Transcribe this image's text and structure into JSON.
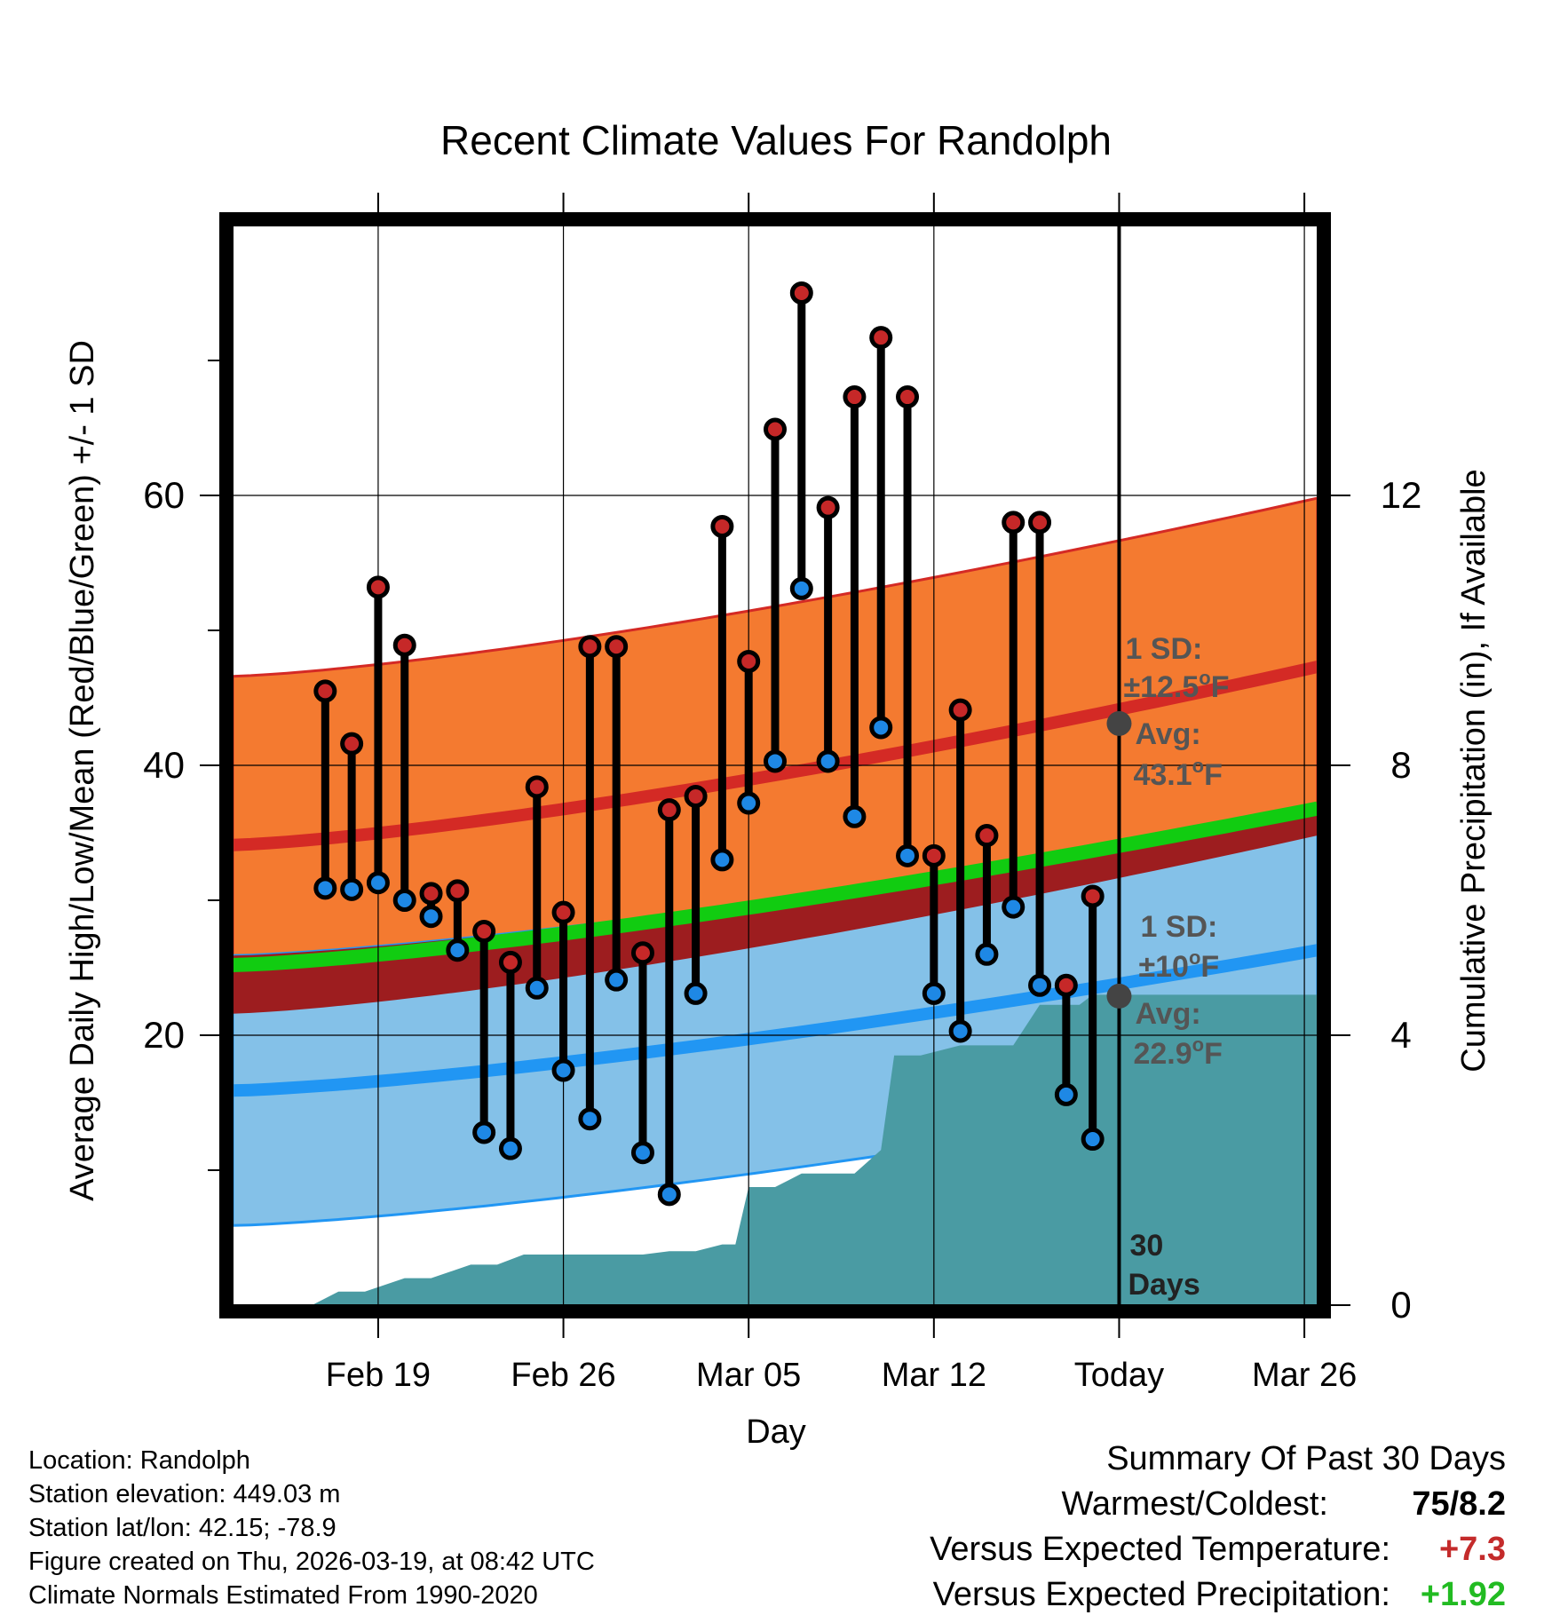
{
  "chart_data": {
    "type": "line",
    "title": "Recent Climate Values For Randolph",
    "xlabel": "Day",
    "ylabel": "Average Daily High/Low/Mean (Red/Blue/Green) +/- 1 SD",
    "y2label": "Cumulative Precipitation (in), If Available",
    "xlim_days": [
      -33.5,
      7.5
    ],
    "ylim": [
      0,
      80
    ],
    "y2lim": [
      0,
      16
    ],
    "x_ticks": [
      {
        "day": -28,
        "label": "Feb 19"
      },
      {
        "day": -21,
        "label": "Feb 26"
      },
      {
        "day": -14,
        "label": "Mar 05"
      },
      {
        "day": -7,
        "label": "Mar 12"
      },
      {
        "day": 0,
        "label": "Today"
      },
      {
        "day": 7,
        "label": "Mar 26"
      }
    ],
    "y_ticks_major": [
      20,
      40,
      60
    ],
    "y_ticks_minor": [
      10,
      30,
      50,
      70
    ],
    "y2_ticks": [
      0,
      4,
      8,
      12
    ],
    "normal_high": {
      "start": 34.1,
      "end": 47.3,
      "sd": 12.5
    },
    "normal_low": {
      "start": 15.9,
      "end": 26.3,
      "sd": 10.0
    },
    "normal_mean": {
      "start": 25.2,
      "end": 36.8
    },
    "daily": [
      {
        "day": -30,
        "high": 45.5,
        "low": 30.9
      },
      {
        "day": -29,
        "high": 41.6,
        "low": 30.8
      },
      {
        "day": -28,
        "high": 53.2,
        "low": 31.3
      },
      {
        "day": -27,
        "high": 48.9,
        "low": 30.0
      },
      {
        "day": -26,
        "high": 30.5,
        "low": 28.8
      },
      {
        "day": -25,
        "high": 30.7,
        "low": 26.3
      },
      {
        "day": -24,
        "high": 27.7,
        "low": 12.8
      },
      {
        "day": -23,
        "high": 25.4,
        "low": 11.6
      },
      {
        "day": -22,
        "high": 38.4,
        "low": 23.5
      },
      {
        "day": -21,
        "high": 29.1,
        "low": 17.4
      },
      {
        "day": -20,
        "high": 48.8,
        "low": 13.8
      },
      {
        "day": -19,
        "high": 48.8,
        "low": 24.1
      },
      {
        "day": -18,
        "high": 26.1,
        "low": 11.3
      },
      {
        "day": -17,
        "high": 36.7,
        "low": 8.2
      },
      {
        "day": -16,
        "high": 37.7,
        "low": 23.1
      },
      {
        "day": -15,
        "high": 57.7,
        "low": 33.0
      },
      {
        "day": -14,
        "high": 47.7,
        "low": 37.2
      },
      {
        "day": -13,
        "high": 64.9,
        "low": 40.3
      },
      {
        "day": -12,
        "high": 75.0,
        "low": 53.1
      },
      {
        "day": -11,
        "high": 59.1,
        "low": 40.3
      },
      {
        "day": -10,
        "high": 67.3,
        "low": 36.2
      },
      {
        "day": -9,
        "high": 71.7,
        "low": 42.8
      },
      {
        "day": -8,
        "high": 67.3,
        "low": 33.3
      },
      {
        "day": -7,
        "high": 33.3,
        "low": 23.1
      },
      {
        "day": -6,
        "high": 44.1,
        "low": 20.3
      },
      {
        "day": -5,
        "high": 34.8,
        "low": 26.0
      },
      {
        "day": -4,
        "high": 58.0,
        "low": 29.5
      },
      {
        "day": -3,
        "high": 58.0,
        "low": 23.7
      },
      {
        "day": -2,
        "high": 23.7,
        "low": 15.6
      },
      {
        "day": -1,
        "high": 30.3,
        "low": 12.3
      }
    ],
    "precip_cumulative": [
      [
        -33.5,
        0.0
      ],
      [
        -30.5,
        0.0
      ],
      [
        -29.5,
        0.2
      ],
      [
        -28.5,
        0.2
      ],
      [
        -27,
        0.4
      ],
      [
        -26,
        0.4
      ],
      [
        -24.5,
        0.6
      ],
      [
        -23.5,
        0.6
      ],
      [
        -22.5,
        0.75
      ],
      [
        -18,
        0.75
      ],
      [
        -17,
        0.8
      ],
      [
        -16,
        0.8
      ],
      [
        -15,
        0.9
      ],
      [
        -14.5,
        0.9
      ],
      [
        -14,
        1.75
      ],
      [
        -13,
        1.75
      ],
      [
        -12,
        1.95
      ],
      [
        -10,
        1.95
      ],
      [
        -9,
        2.3
      ],
      [
        -8.5,
        3.7
      ],
      [
        -7.5,
        3.7
      ],
      [
        -6,
        3.85
      ],
      [
        -4,
        3.85
      ],
      [
        -3,
        4.45
      ],
      [
        -1.5,
        4.45
      ],
      [
        -1,
        4.6
      ],
      [
        7.5,
        4.6
      ]
    ],
    "annotations": {
      "high_sd_label": "1 SD:",
      "high_sd_value": "±12.5",
      "high_avg_label": "Avg:",
      "high_avg_value": "43.1",
      "low_sd_label": "1 SD:",
      "low_sd_value": "±10",
      "low_avg_label": "Avg:",
      "low_avg_value": "22.9",
      "deg_unit": "o",
      "f_unit": "F",
      "days_count": "30",
      "days_label": "Days",
      "high_avg_today": 43.1,
      "low_avg_today": 22.9
    },
    "colors": {
      "high_band": "#f47a30",
      "high_band_edge": "#d42a25",
      "high_mean_line": "#d42a25",
      "low_band": "#84c1e8",
      "low_band_edge": "#2196f3",
      "low_mean_line": "#2196f3",
      "mean_line": "#11cc11",
      "overlap_band": "#9e1414",
      "precip_fill": "#4a9ba3",
      "high_marker": "#c62828",
      "low_marker": "#1e88e5",
      "annotation_text": "#555555",
      "today_marker": "#444444"
    }
  },
  "footer": {
    "location": "Location: Randolph",
    "elevation": "Station elevation: 449.03 m",
    "latlon": "Station lat/lon: 42.15; -78.9",
    "created": "Figure created on Thu, 2026-03-19, at 08:42 UTC",
    "normals": "Climate Normals Estimated From 1990-2020"
  },
  "summary": {
    "title": "Summary Of Past 30 Days",
    "warmest_label": "Warmest/Coldest:",
    "warmest_value": "75/8.2",
    "temp_label": "Versus Expected Temperature:",
    "temp_value": "+7.3",
    "precip_label": "Versus Expected Precipitation:",
    "precip_value": "+1.92"
  }
}
